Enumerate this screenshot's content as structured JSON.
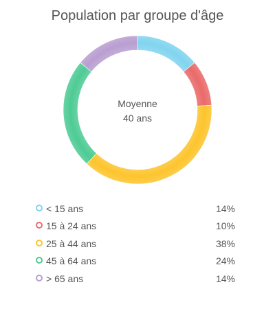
{
  "chart_data": {
    "type": "pie",
    "variant": "donut",
    "title": "Population par groupe d'âge",
    "center_label": {
      "line1": "Moyenne",
      "line2": "40 ans"
    },
    "categories": [
      "< 15 ans",
      "15 à 24 ans",
      "25 à 44 ans",
      "45 à 64 ans",
      "> 65 ans"
    ],
    "values": [
      14,
      10,
      38,
      24,
      14
    ],
    "value_labels": [
      "14%",
      "10%",
      "38%",
      "24%",
      "14%"
    ],
    "colors": [
      "#81d4ef",
      "#ea6a6a",
      "#fdc42d",
      "#4ecb95",
      "#b99ed1"
    ],
    "legend_position": "bottom"
  }
}
